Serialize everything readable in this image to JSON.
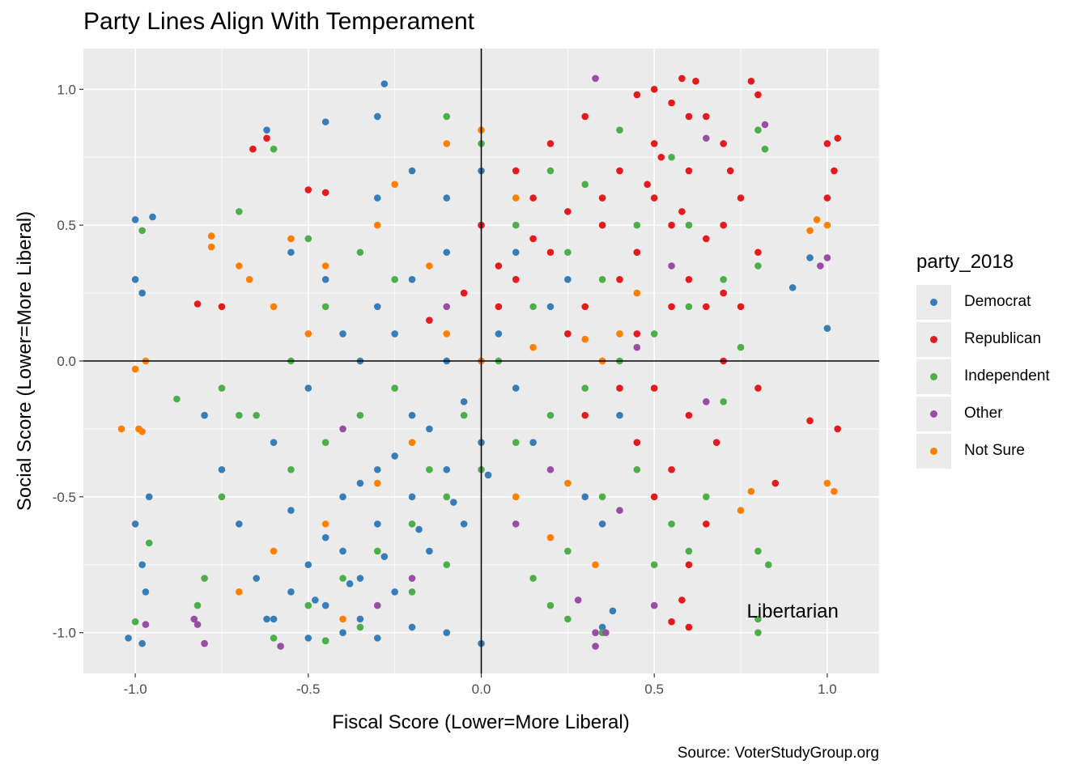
{
  "chart_data": {
    "type": "scatter",
    "title": "Party Lines Align With Temperament",
    "xlabel": "Fiscal Score (Lower=More Liberal)",
    "ylabel": "Social Score (Lower=More Liberal)",
    "xlim": [
      -1.15,
      1.15
    ],
    "ylim": [
      -1.15,
      1.15
    ],
    "x_ticks": [
      -1.0,
      -0.5,
      0.0,
      0.5,
      1.0
    ],
    "x_tick_labels": [
      "-1.0",
      "-0.5",
      "0.0",
      "0.5",
      "1.0"
    ],
    "y_ticks": [
      -1.0,
      -0.5,
      0.0,
      0.5,
      1.0
    ],
    "y_tick_labels": [
      "-1.0",
      "-0.5",
      "0.0",
      "0.5",
      "1.0"
    ],
    "grid": true,
    "reference_lines": {
      "x": 0,
      "y": 0
    },
    "annotation": {
      "text": "Libertarian",
      "x": 0.9,
      "y": -0.92
    },
    "caption": "Source: VoterStudyGroup.org",
    "legend": {
      "title": "party_2018",
      "placement": "right"
    },
    "series": [
      {
        "name": "Democrat",
        "color": "#377eb8",
        "points": [
          [
            -0.55,
            -0.85
          ],
          [
            -0.5,
            -0.75
          ],
          [
            -0.45,
            -0.9
          ],
          [
            -0.4,
            -0.7
          ],
          [
            -0.35,
            -0.8
          ],
          [
            -0.3,
            -0.6
          ],
          [
            -0.25,
            -0.85
          ],
          [
            -0.2,
            -0.5
          ],
          [
            -0.15,
            -0.7
          ],
          [
            -0.1,
            -0.4
          ],
          [
            -0.05,
            -0.6
          ],
          [
            0.0,
            -0.3
          ],
          [
            -0.6,
            -0.95
          ],
          [
            -0.5,
            -1.02
          ],
          [
            -0.45,
            -1.03
          ],
          [
            -0.4,
            -1.0
          ],
          [
            -0.35,
            -0.95
          ],
          [
            -0.3,
            -1.02
          ],
          [
            -0.2,
            -0.98
          ],
          [
            -0.1,
            -1.0
          ],
          [
            0.0,
            -1.04
          ],
          [
            -0.65,
            -0.8
          ],
          [
            -0.7,
            -0.6
          ],
          [
            -0.75,
            -0.4
          ],
          [
            -0.8,
            -0.2
          ],
          [
            -0.6,
            -0.3
          ],
          [
            -0.5,
            -0.1
          ],
          [
            -0.4,
            0.1
          ],
          [
            -0.3,
            0.2
          ],
          [
            -0.2,
            0.3
          ],
          [
            -0.1,
            0.4
          ],
          [
            0.0,
            0.5
          ],
          [
            -0.3,
            0.9
          ],
          [
            -0.28,
            1.02
          ],
          [
            -0.45,
            0.88
          ],
          [
            -0.62,
            0.85
          ],
          [
            -1.0,
            0.52
          ],
          [
            -0.95,
            0.53
          ],
          [
            -1.0,
            0.3
          ],
          [
            -0.98,
            0.25
          ],
          [
            -1.0,
            -0.6
          ],
          [
            -0.98,
            -0.75
          ],
          [
            -0.97,
            -0.85
          ],
          [
            -0.96,
            -0.5
          ],
          [
            -1.02,
            -1.02
          ],
          [
            -0.98,
            -1.04
          ],
          [
            -0.4,
            -0.5
          ],
          [
            -0.3,
            -0.4
          ],
          [
            -0.2,
            -0.2
          ],
          [
            -0.1,
            0.0
          ],
          [
            0.05,
            0.1
          ],
          [
            0.1,
            -0.1
          ],
          [
            0.15,
            -0.3
          ],
          [
            0.2,
            0.2
          ],
          [
            0.25,
            0.3
          ],
          [
            0.3,
            -0.5
          ],
          [
            0.35,
            -0.6
          ],
          [
            0.4,
            -0.2
          ],
          [
            0.45,
            0.4
          ],
          [
            -0.55,
            -0.55
          ],
          [
            -0.45,
            -0.65
          ],
          [
            -0.35,
            -0.45
          ],
          [
            -0.25,
            -0.35
          ],
          [
            -0.15,
            -0.25
          ],
          [
            -0.05,
            -0.15
          ],
          [
            1.0,
            0.12
          ],
          [
            0.95,
            0.38
          ],
          [
            0.9,
            0.27
          ],
          [
            -0.35,
            0.0
          ],
          [
            -0.25,
            0.1
          ],
          [
            -0.45,
            0.3
          ],
          [
            -0.55,
            0.4
          ],
          [
            -0.3,
            0.6
          ],
          [
            -0.2,
            0.7
          ],
          [
            -0.1,
            0.6
          ],
          [
            0.0,
            0.7
          ],
          [
            0.1,
            0.4
          ],
          [
            0.35,
            -0.98
          ],
          [
            0.38,
            -0.92
          ],
          [
            -0.62,
            -0.95
          ],
          [
            -0.48,
            -0.88
          ],
          [
            -0.38,
            -0.82
          ],
          [
            -0.28,
            -0.72
          ],
          [
            -0.18,
            -0.62
          ],
          [
            -0.08,
            -0.52
          ],
          [
            0.02,
            -0.42
          ]
        ]
      },
      {
        "name": "Republican",
        "color": "#e41a1c",
        "points": [
          [
            0.5,
            0.6
          ],
          [
            0.55,
            0.5
          ],
          [
            0.6,
            0.7
          ],
          [
            0.45,
            0.4
          ],
          [
            0.4,
            0.3
          ],
          [
            0.35,
            0.5
          ],
          [
            0.3,
            0.2
          ],
          [
            0.25,
            0.1
          ],
          [
            0.2,
            0.4
          ],
          [
            0.15,
            0.6
          ],
          [
            0.1,
            0.3
          ],
          [
            0.05,
            0.2
          ],
          [
            0.6,
            0.9
          ],
          [
            0.55,
            0.95
          ],
          [
            0.5,
            1.0
          ],
          [
            0.45,
            0.98
          ],
          [
            0.58,
            1.04
          ],
          [
            0.62,
            1.03
          ],
          [
            0.78,
            1.03
          ],
          [
            0.8,
            0.98
          ],
          [
            0.7,
            0.8
          ],
          [
            0.75,
            0.6
          ],
          [
            0.8,
            0.4
          ],
          [
            0.65,
            0.2
          ],
          [
            0.7,
            0.0
          ],
          [
            0.6,
            -0.2
          ],
          [
            0.55,
            -0.4
          ],
          [
            0.5,
            -0.5
          ],
          [
            0.45,
            -0.3
          ],
          [
            0.4,
            -0.1
          ],
          [
            0.35,
            0.0
          ],
          [
            0.3,
            -0.2
          ],
          [
            0.65,
            -0.6
          ],
          [
            0.6,
            -0.75
          ],
          [
            0.58,
            -0.88
          ],
          [
            0.6,
            -0.98
          ],
          [
            0.55,
            -0.96
          ],
          [
            1.0,
            0.8
          ],
          [
            1.03,
            0.82
          ],
          [
            1.02,
            0.7
          ],
          [
            1.0,
            0.6
          ],
          [
            1.03,
            -0.25
          ],
          [
            0.95,
            -0.22
          ],
          [
            0.85,
            -0.45
          ],
          [
            -0.82,
            0.21
          ],
          [
            -0.75,
            0.2
          ],
          [
            -0.66,
            0.78
          ],
          [
            -0.62,
            0.82
          ],
          [
            -0.5,
            0.63
          ],
          [
            -0.45,
            0.62
          ],
          [
            0.0,
            0.5
          ],
          [
            0.1,
            0.7
          ],
          [
            0.2,
            0.8
          ],
          [
            0.3,
            0.9
          ],
          [
            0.4,
            0.7
          ],
          [
            0.5,
            0.8
          ],
          [
            0.7,
            0.5
          ],
          [
            0.75,
            0.2
          ],
          [
            0.8,
            -0.1
          ],
          [
            0.68,
            -0.3
          ],
          [
            0.72,
            0.7
          ],
          [
            0.65,
            0.9
          ],
          [
            0.35,
            0.6
          ],
          [
            0.25,
            0.55
          ],
          [
            0.15,
            0.45
          ],
          [
            0.05,
            0.35
          ],
          [
            -0.05,
            0.25
          ],
          [
            -0.15,
            0.15
          ],
          [
            0.45,
            0.1
          ],
          [
            0.55,
            0.2
          ],
          [
            0.5,
            -0.1
          ],
          [
            0.6,
            0.3
          ],
          [
            0.65,
            0.45
          ],
          [
            0.7,
            0.25
          ],
          [
            0.48,
            0.65
          ],
          [
            0.52,
            0.75
          ],
          [
            0.58,
            0.55
          ]
        ]
      },
      {
        "name": "Independent",
        "color": "#4daf4a",
        "points": [
          [
            -0.4,
            -0.8
          ],
          [
            -0.3,
            -0.7
          ],
          [
            -0.2,
            -0.6
          ],
          [
            -0.1,
            -0.5
          ],
          [
            0.0,
            -0.4
          ],
          [
            0.1,
            -0.3
          ],
          [
            0.2,
            -0.2
          ],
          [
            0.3,
            -0.1
          ],
          [
            0.4,
            0.0
          ],
          [
            0.5,
            0.1
          ],
          [
            0.6,
            0.2
          ],
          [
            0.7,
            0.3
          ],
          [
            0.8,
            0.35
          ],
          [
            -0.5,
            -0.9
          ],
          [
            -0.6,
            -1.02
          ],
          [
            -0.45,
            -1.03
          ],
          [
            -0.35,
            -0.98
          ],
          [
            -0.8,
            -0.8
          ],
          [
            -0.82,
            -0.9
          ],
          [
            -0.75,
            -0.5
          ],
          [
            -0.7,
            -0.2
          ],
          [
            -0.75,
            -0.1
          ],
          [
            -0.88,
            -0.14
          ],
          [
            -0.98,
            0.48
          ],
          [
            -0.7,
            0.55
          ],
          [
            -0.6,
            0.78
          ],
          [
            -0.5,
            0.45
          ],
          [
            0.2,
            0.7
          ],
          [
            0.3,
            0.65
          ],
          [
            0.4,
            0.85
          ],
          [
            0.55,
            0.75
          ],
          [
            0.8,
            0.85
          ],
          [
            0.82,
            0.78
          ],
          [
            0.65,
            -0.5
          ],
          [
            0.6,
            -0.7
          ],
          [
            0.55,
            -0.6
          ],
          [
            0.5,
            -0.75
          ],
          [
            0.8,
            -0.7
          ],
          [
            0.83,
            -0.75
          ],
          [
            0.8,
            -0.95
          ],
          [
            0.8,
            -1.0
          ],
          [
            0.15,
            -0.8
          ],
          [
            0.2,
            -0.9
          ],
          [
            0.25,
            -0.95
          ],
          [
            0.35,
            -1.0
          ],
          [
            -0.15,
            -0.4
          ],
          [
            -0.05,
            -0.2
          ],
          [
            0.05,
            0.0
          ],
          [
            0.15,
            0.2
          ],
          [
            0.25,
            0.4
          ],
          [
            0.35,
            0.3
          ],
          [
            0.45,
            0.5
          ],
          [
            -0.25,
            0.3
          ],
          [
            -0.35,
            0.4
          ],
          [
            -0.45,
            0.2
          ],
          [
            -0.55,
            0.0
          ],
          [
            -0.65,
            -0.2
          ],
          [
            -0.55,
            -0.4
          ],
          [
            -0.45,
            -0.3
          ],
          [
            -0.35,
            -0.2
          ],
          [
            -0.25,
            -0.1
          ],
          [
            -0.96,
            -0.67
          ],
          [
            -1.0,
            -0.96
          ],
          [
            0.1,
            0.5
          ],
          [
            0.0,
            0.8
          ],
          [
            -0.1,
            0.9
          ],
          [
            0.7,
            -0.15
          ],
          [
            0.75,
            0.05
          ],
          [
            0.6,
            0.5
          ],
          [
            0.45,
            -0.4
          ],
          [
            0.35,
            -0.5
          ],
          [
            0.25,
            -0.7
          ],
          [
            -0.2,
            -0.85
          ],
          [
            -0.1,
            -0.75
          ]
        ]
      },
      {
        "name": "Other",
        "color": "#984ea3",
        "points": [
          [
            0.33,
            1.04
          ],
          [
            0.82,
            0.87
          ],
          [
            0.65,
            0.82
          ],
          [
            1.0,
            0.38
          ],
          [
            0.98,
            0.35
          ],
          [
            0.4,
            -0.55
          ],
          [
            0.33,
            -1.0
          ],
          [
            0.33,
            -1.05
          ],
          [
            0.36,
            -1.0
          ],
          [
            -0.97,
            -0.97
          ],
          [
            -0.83,
            -0.95
          ],
          [
            -0.82,
            -0.97
          ],
          [
            -0.8,
            -1.04
          ],
          [
            -0.58,
            -1.05
          ],
          [
            -0.3,
            -0.9
          ],
          [
            -0.2,
            -0.8
          ],
          [
            0.1,
            -0.6
          ],
          [
            0.2,
            -0.4
          ],
          [
            0.45,
            0.05
          ],
          [
            0.55,
            0.35
          ],
          [
            -0.4,
            -0.25
          ],
          [
            -0.1,
            0.2
          ],
          [
            0.65,
            -0.15
          ],
          [
            0.5,
            -0.9
          ],
          [
            0.28,
            -0.88
          ]
        ]
      },
      {
        "name": "Not Sure",
        "color": "#ff7f00",
        "points": [
          [
            -1.04,
            -0.25
          ],
          [
            -0.98,
            -0.26
          ],
          [
            -0.99,
            -0.25
          ],
          [
            -0.97,
            0.0
          ],
          [
            -1.0,
            -0.03
          ],
          [
            -0.78,
            0.46
          ],
          [
            -0.78,
            0.42
          ],
          [
            -0.7,
            0.35
          ],
          [
            -0.67,
            0.3
          ],
          [
            -0.6,
            0.2
          ],
          [
            -0.5,
            0.1
          ],
          [
            -0.3,
            0.5
          ],
          [
            -0.25,
            0.65
          ],
          [
            -0.1,
            0.8
          ],
          [
            0.0,
            0.85
          ],
          [
            0.1,
            0.6
          ],
          [
            -0.1,
            0.1
          ],
          [
            0.0,
            0.0
          ],
          [
            0.15,
            0.05
          ],
          [
            0.3,
            0.08
          ],
          [
            0.35,
            0.0
          ],
          [
            0.4,
            0.1
          ],
          [
            0.45,
            0.25
          ],
          [
            -0.2,
            -0.3
          ],
          [
            -0.3,
            -0.45
          ],
          [
            -0.45,
            -0.6
          ],
          [
            -0.6,
            -0.7
          ],
          [
            -0.7,
            -0.85
          ],
          [
            -0.4,
            -0.95
          ],
          [
            0.1,
            -0.5
          ],
          [
            0.2,
            -0.65
          ],
          [
            0.33,
            -0.75
          ],
          [
            0.95,
            0.48
          ],
          [
            1.0,
            0.5
          ],
          [
            0.97,
            0.52
          ],
          [
            0.78,
            -0.48
          ],
          [
            0.75,
            -0.55
          ],
          [
            1.0,
            -0.45
          ],
          [
            1.02,
            -0.48
          ],
          [
            -0.55,
            0.45
          ],
          [
            -0.45,
            0.35
          ],
          [
            0.25,
            -0.45
          ],
          [
            -0.15,
            0.35
          ]
        ]
      }
    ]
  }
}
